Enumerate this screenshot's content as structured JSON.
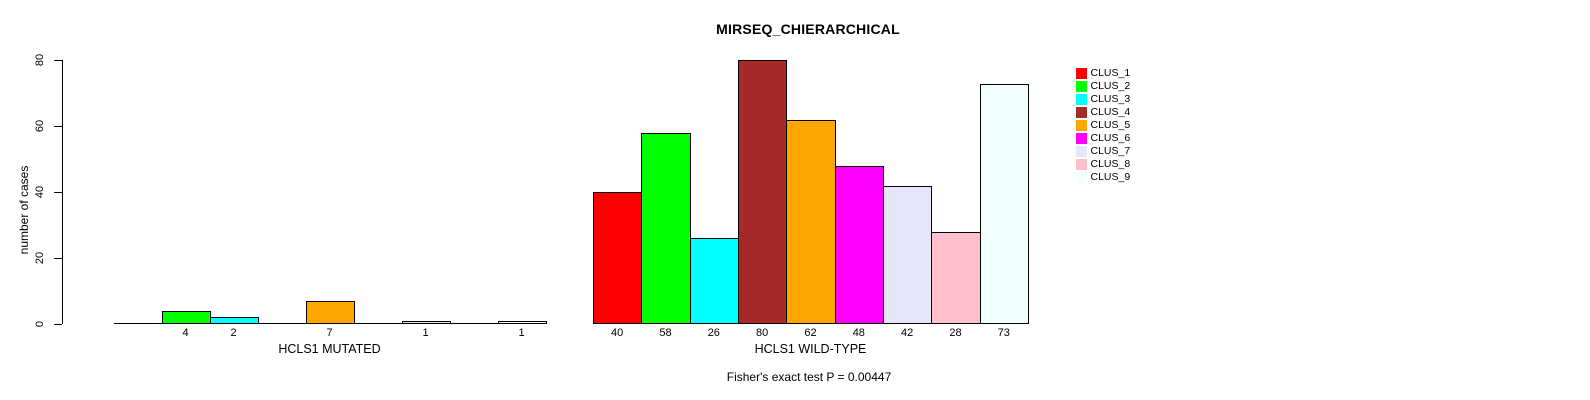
{
  "chart_data": {
    "type": "bar",
    "title": "MIRSEQ_CHIERARCHICAL",
    "ylabel": "number of cases",
    "xlabel": "",
    "ylim": [
      0,
      80
    ],
    "yticks": [
      0,
      20,
      40,
      60,
      80
    ],
    "grid": false,
    "legend_position": "right",
    "bar_border_color": "#000000",
    "background": "#FFFFFF",
    "annotation": "Fisher's exact test P = 0.00447",
    "categories": [
      "HCLS1 MUTATED",
      "HCLS1 WILD-TYPE"
    ],
    "series": [
      {
        "name": "CLUS_1",
        "color": "#FF0000",
        "values": [
          0,
          40
        ]
      },
      {
        "name": "CLUS_2",
        "color": "#00FF00",
        "values": [
          4,
          58
        ]
      },
      {
        "name": "CLUS_3",
        "color": "#00FFFF",
        "values": [
          2,
          26
        ]
      },
      {
        "name": "CLUS_4",
        "color": "#A52A2A",
        "values": [
          0,
          80
        ]
      },
      {
        "name": "CLUS_5",
        "color": "#FFA500",
        "values": [
          7,
          62
        ]
      },
      {
        "name": "CLUS_6",
        "color": "#FF00FF",
        "values": [
          0,
          48
        ]
      },
      {
        "name": "CLUS_7",
        "color": "#E6E6FA",
        "values": [
          1,
          42
        ]
      },
      {
        "name": "CLUS_8",
        "color": "#FFC0CB",
        "values": [
          0,
          28
        ]
      },
      {
        "name": "CLUS_9",
        "color": "#F0FFFF",
        "values": [
          1,
          73
        ]
      }
    ]
  }
}
